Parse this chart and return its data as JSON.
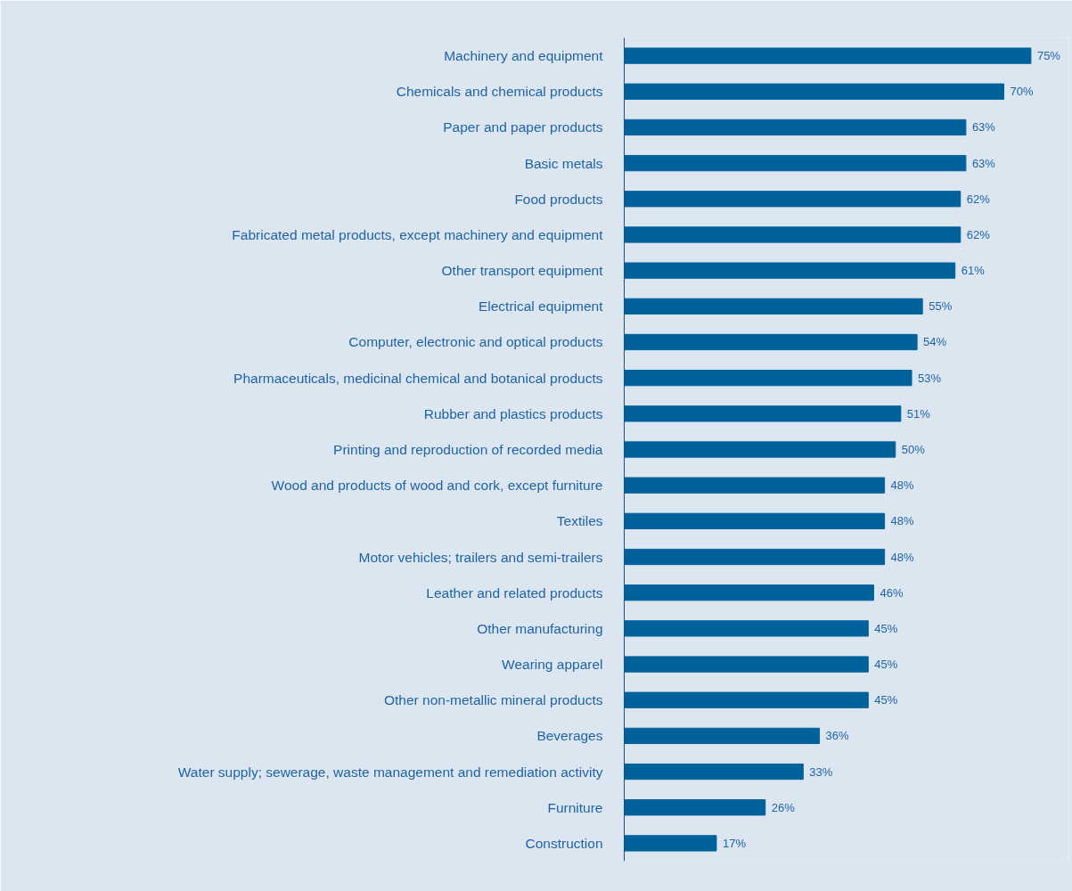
{
  "chart_data": {
    "type": "bar",
    "orientation": "horizontal",
    "categories": [
      "Machinery and equipment",
      "Chemicals and chemical products",
      "Paper and paper products",
      "Basic metals",
      "Food products",
      "Fabricated metal products, except machinery and equipment",
      "Other transport equipment",
      "Electrical equipment",
      "Computer, electronic and optical products",
      "Pharmaceuticals, medicinal chemical and botanical products",
      "Rubber and plastics products",
      "Printing and reproduction of recorded media",
      "Wood and products of wood and cork, except furniture",
      "Textiles",
      "Motor vehicles; trailers and semi-trailers",
      "Leather and related products",
      "Other manufacturing",
      "Wearing apparel",
      "Other non-metallic mineral products",
      "Beverages",
      "Water supply; sewerage, waste management and remediation activity",
      "Furniture",
      "Construction"
    ],
    "values": [
      75,
      70,
      63,
      63,
      62,
      62,
      61,
      55,
      54,
      53,
      51,
      50,
      48,
      48,
      48,
      46,
      45,
      45,
      45,
      36,
      33,
      26,
      17
    ],
    "value_labels": [
      "75%",
      "70%",
      "63%",
      "63%",
      "62%",
      "62%",
      "61%",
      "55%",
      "54%",
      "53%",
      "51%",
      "50%",
      "48%",
      "48%",
      "48%",
      "46%",
      "45%",
      "45%",
      "45%",
      "36%",
      "33%",
      "26%",
      "17%"
    ],
    "color": "#00629b",
    "xlim": [
      0,
      82
    ],
    "tick_labels": "y",
    "grid": false
  }
}
